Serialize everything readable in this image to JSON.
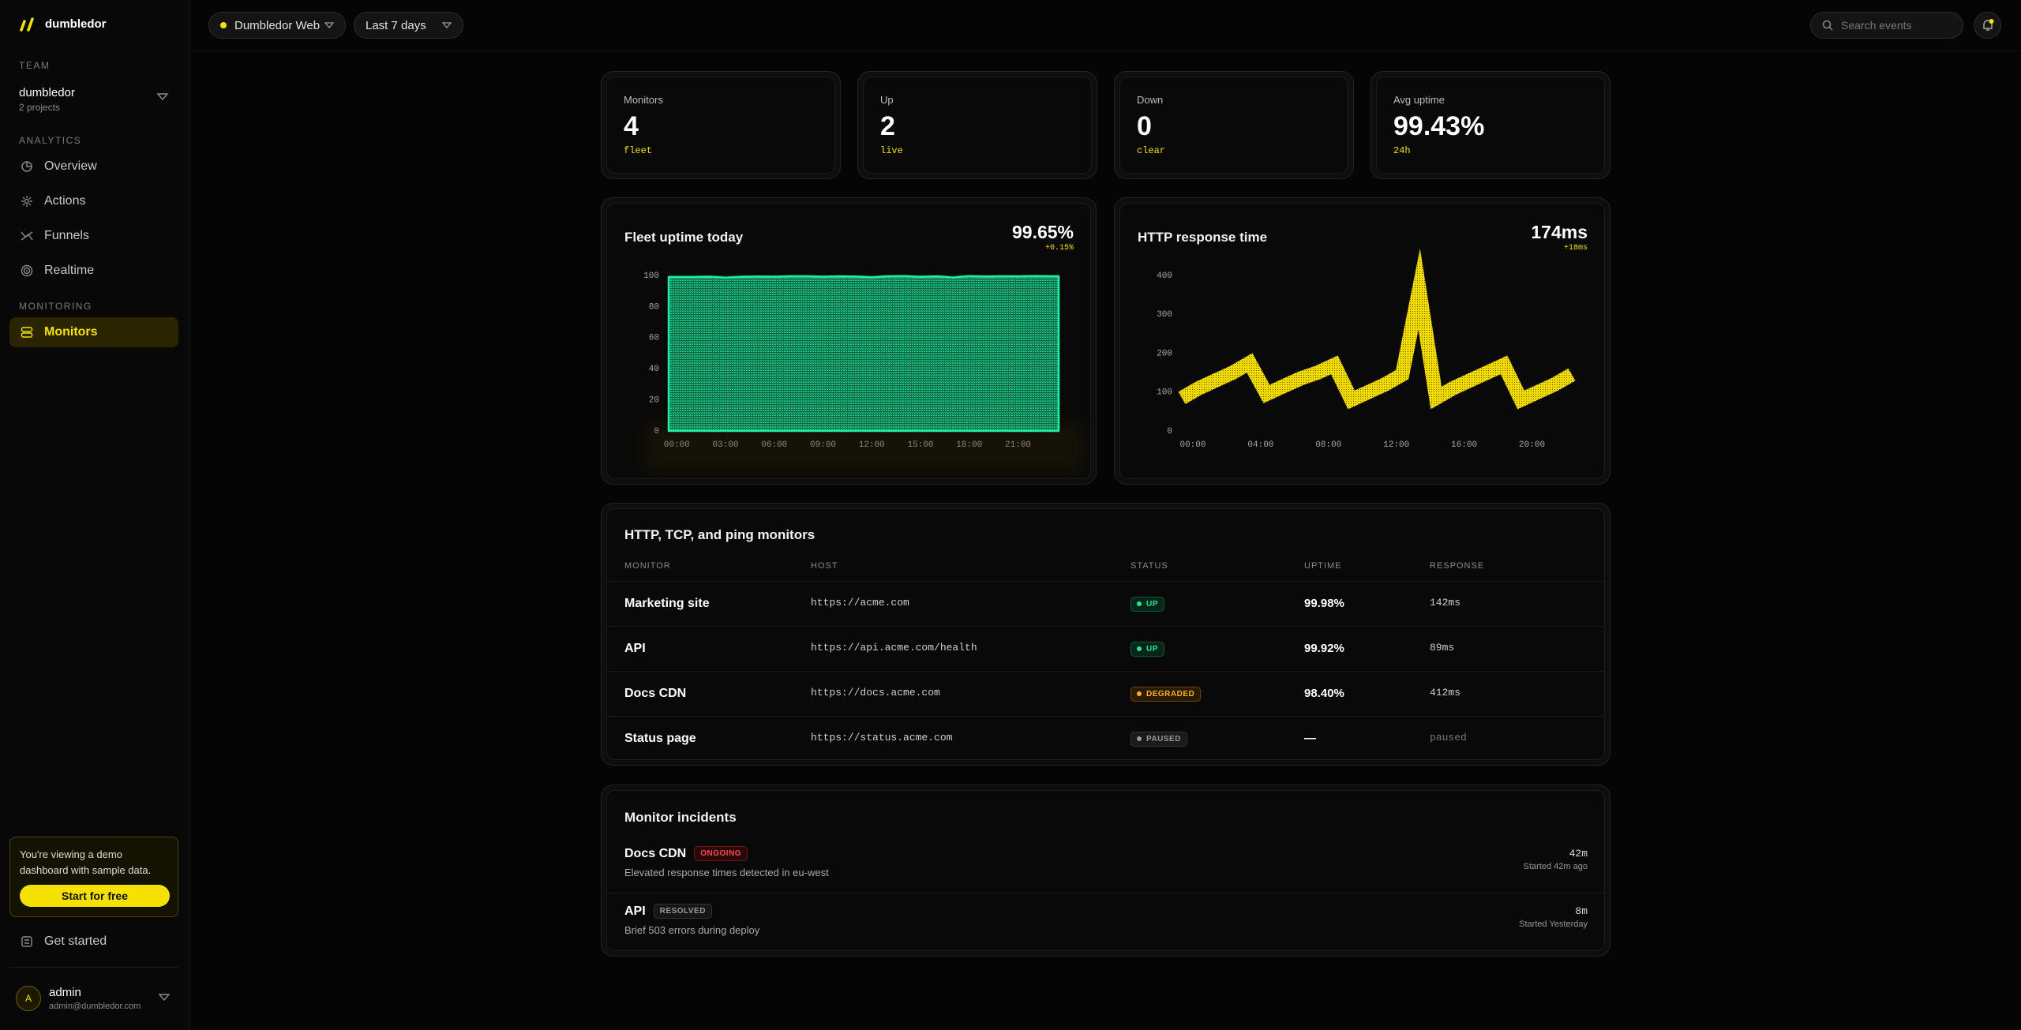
{
  "sidebar": {
    "brand": "dumbledor",
    "team_label": "TEAM",
    "team_name": "dumbledor",
    "team_sub": "2 projects",
    "analytics_label": "ANALYTICS",
    "analytics_items": [
      "Overview",
      "Actions",
      "Funnels",
      "Realtime"
    ],
    "monitoring_label": "MONITORING",
    "monitoring_items": [
      "Monitors"
    ],
    "banner_text": "You're viewing a demo dashboard with sample data.",
    "banner_button": "Start for free",
    "get_started": "Get started",
    "user_initial": "A",
    "user_name": "admin",
    "user_email": "admin@dumbledor.com"
  },
  "topbar": {
    "project": "Dumbledor Web",
    "range": "Last 7 days",
    "search_placeholder": "Search events"
  },
  "stats": [
    {
      "label": "Monitors",
      "value": "4",
      "sub": "fleet"
    },
    {
      "label": "Up",
      "value": "2",
      "sub": "live"
    },
    {
      "label": "Down",
      "value": "0",
      "sub": "clear"
    },
    {
      "label": "Avg uptime",
      "value": "99.43%",
      "sub": "24h"
    }
  ],
  "chart_data": [
    {
      "type": "area",
      "title": "Fleet uptime today",
      "headline": "99.65%",
      "delta": "+0.15%",
      "color": "#1ff0a2",
      "categories": [
        "00:00",
        null,
        null,
        "03:00",
        null,
        null,
        "06:00",
        null,
        null,
        "09:00",
        null,
        null,
        "12:00",
        null,
        null,
        "15:00",
        null,
        null,
        "18:00",
        null,
        null,
        "21:00",
        null,
        null
      ],
      "values": [
        99,
        99,
        99.2,
        98.6,
        99.1,
        99.3,
        99.2,
        99.5,
        99.5,
        99.2,
        99.4,
        99.3,
        98.8,
        99.5,
        99.6,
        99.1,
        99.4,
        98.7,
        99.6,
        99.3,
        99.5,
        99.4,
        99.6,
        99.5
      ],
      "ylim": [
        0,
        100
      ],
      "yticks": [
        0,
        20,
        40,
        60,
        80,
        100
      ],
      "grid": false
    },
    {
      "type": "line",
      "title": "HTTP response time",
      "headline": "174ms",
      "delta": "+18ms",
      "color": "#f2dc00",
      "categories": [
        "00:00",
        null,
        null,
        null,
        "04:00",
        null,
        null,
        null,
        "08:00",
        null,
        null,
        null,
        "12:00",
        null,
        null,
        null,
        "16:00",
        null,
        null,
        null,
        "20:00",
        null,
        null,
        null
      ],
      "values": [
        85,
        110,
        130,
        150,
        175,
        95,
        115,
        135,
        150,
        170,
        80,
        100,
        120,
        145,
        365,
        85,
        110,
        130,
        150,
        170,
        80,
        100,
        120,
        145
      ],
      "ylim": [
        0,
        400
      ],
      "yticks": [
        0,
        100,
        200,
        300,
        400
      ],
      "grid": false
    }
  ],
  "table": {
    "title": "HTTP, TCP, and ping monitors",
    "columns": [
      "MONITOR",
      "HOST",
      "STATUS",
      "UPTIME",
      "RESPONSE"
    ],
    "rows": [
      [
        "Marketing site",
        "https://acme.com",
        "UP",
        "99.98%",
        "142ms"
      ],
      [
        "API",
        "https://api.acme.com/health",
        "UP",
        "99.92%",
        "89ms"
      ],
      [
        "Docs CDN",
        "https://docs.acme.com",
        "DEGRADED",
        "98.40%",
        "412ms"
      ],
      [
        "Status page",
        "https://status.acme.com",
        "PAUSED",
        "—",
        "paused"
      ]
    ]
  },
  "incidents": {
    "title": "Monitor incidents",
    "items": [
      {
        "name": "Docs CDN",
        "badge": "ONGOING",
        "description": "Elevated response times detected in eu-west",
        "duration": "42m",
        "started": "Started 42m ago"
      },
      {
        "name": "API",
        "badge": "RESOLVED",
        "description": "Brief 503 errors during deploy",
        "duration": "8m",
        "started": "Started Yesterday"
      }
    ]
  }
}
